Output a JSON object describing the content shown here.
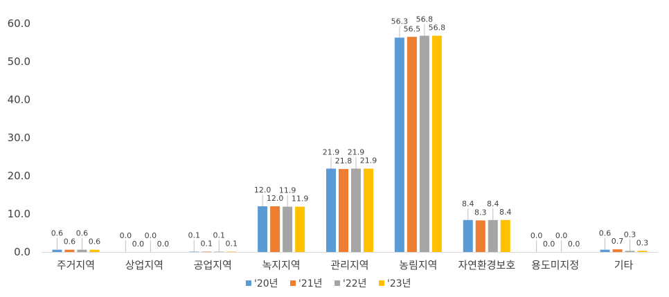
{
  "chart_data": {
    "type": "bar",
    "categories": [
      "주거지역",
      "상업지역",
      "공업지역",
      "녹지지역",
      "관리지역",
      "농림지역",
      "자연환경보호",
      "용도미지정",
      "기타"
    ],
    "series": [
      {
        "name": "'20년",
        "color": "#5B9BD5",
        "values": [
          0.6,
          0.0,
          0.1,
          12.0,
          21.9,
          56.3,
          8.4,
          0.0,
          0.6
        ],
        "labels": [
          "0.6",
          "0.0",
          "0.1",
          "12.0",
          "21.9",
          "56.3",
          "8.4",
          "0.0",
          "0.6"
        ]
      },
      {
        "name": "'21년",
        "color": "#ED7D31",
        "values": [
          0.6,
          0.0,
          0.1,
          12.0,
          21.8,
          56.5,
          8.3,
          0.0,
          0.7
        ],
        "labels": [
          "0.6",
          "0.0",
          "0.1",
          "12.0",
          "21.8",
          "56.5",
          "8.3",
          "0.0",
          "0.7"
        ]
      },
      {
        "name": "'22년",
        "color": "#A5A5A5",
        "values": [
          0.6,
          0.0,
          0.1,
          11.9,
          21.9,
          56.8,
          8.4,
          0.0,
          0.3
        ],
        "labels": [
          "0.6",
          "0.0",
          "0.1",
          "11.9",
          "21.9",
          "56.8",
          "8.4",
          "0.0",
          "0.3"
        ]
      },
      {
        "name": "'23년",
        "color": "#FFC000",
        "values": [
          0.6,
          0.0,
          0.1,
          11.9,
          21.9,
          56.8,
          8.4,
          0.0,
          0.3
        ],
        "labels": [
          "0.6",
          "0.0",
          "0.1",
          "11.9",
          "21.9",
          "56.8",
          "8.4",
          "0.0",
          "0.3"
        ]
      }
    ],
    "title": "",
    "xlabel": "",
    "ylabel": "",
    "ylim": [
      0,
      60
    ],
    "yticks": [
      "0.0",
      "10.0",
      "20.0",
      "30.0",
      "40.0",
      "50.0",
      "60.0"
    ],
    "grid": false,
    "legend": "bottom"
  }
}
